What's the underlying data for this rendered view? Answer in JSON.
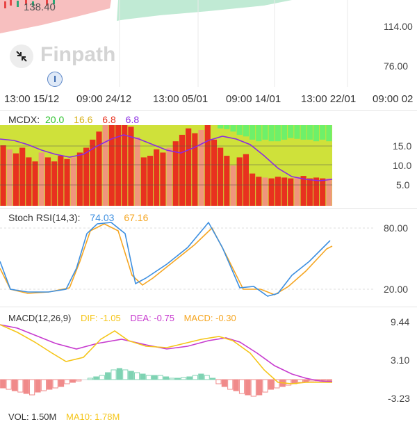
{
  "colors": {
    "up_fill": "#8fd6b3",
    "down_fill": "#f4a3a3",
    "mcdx_red": "#e8311f",
    "mcdx_salmon": "#f0957d",
    "mcdx_yellow": "#cfe13a",
    "mcdx_green": "#6ef06a",
    "mcdx_purple": "#8a2be2",
    "stoch_k": "#3d8fe0",
    "stoch_d": "#f5a623",
    "macd_dif": "#f5c518",
    "macd_dea": "#c73bcf",
    "macd_pos": "#7fd3b3",
    "macd_neg": "#f08a8a"
  },
  "price_pane": {
    "low_price_label": "138.40",
    "axis": [
      "114.00",
      "76.00"
    ]
  },
  "watermark": {
    "brand": "Finpath",
    "icon": "compress-arrows-icon"
  },
  "marker": {
    "label": "I"
  },
  "time_axis": [
    "13:00 15/12",
    "09:00 24/12",
    "13:00 05/01",
    "09:00 14/01",
    "13:00 22/01",
    "09:00 02"
  ],
  "mcdx": {
    "title": "MCDX:",
    "v1": "20.0",
    "v2": "16.6",
    "v3": "6.8",
    "v4": "6.8",
    "axis": [
      "15.0",
      "10.0",
      "5.0"
    ]
  },
  "stoch": {
    "title": "Stoch RSI(14,3):",
    "k": "74.03",
    "d": "67.16",
    "axis": [
      "80.00",
      "20.00"
    ]
  },
  "macd": {
    "title": "MACD(12,26,9)",
    "dif": "DIF: -1.05",
    "dea": "DEA: -0.75",
    "macd": "MACD: -0.30",
    "axis": [
      "9.44",
      "3.10",
      "-3.23"
    ]
  },
  "vol": {
    "title": "VOL: 1.50M",
    "ma": "MA10: 1.78M"
  }
}
